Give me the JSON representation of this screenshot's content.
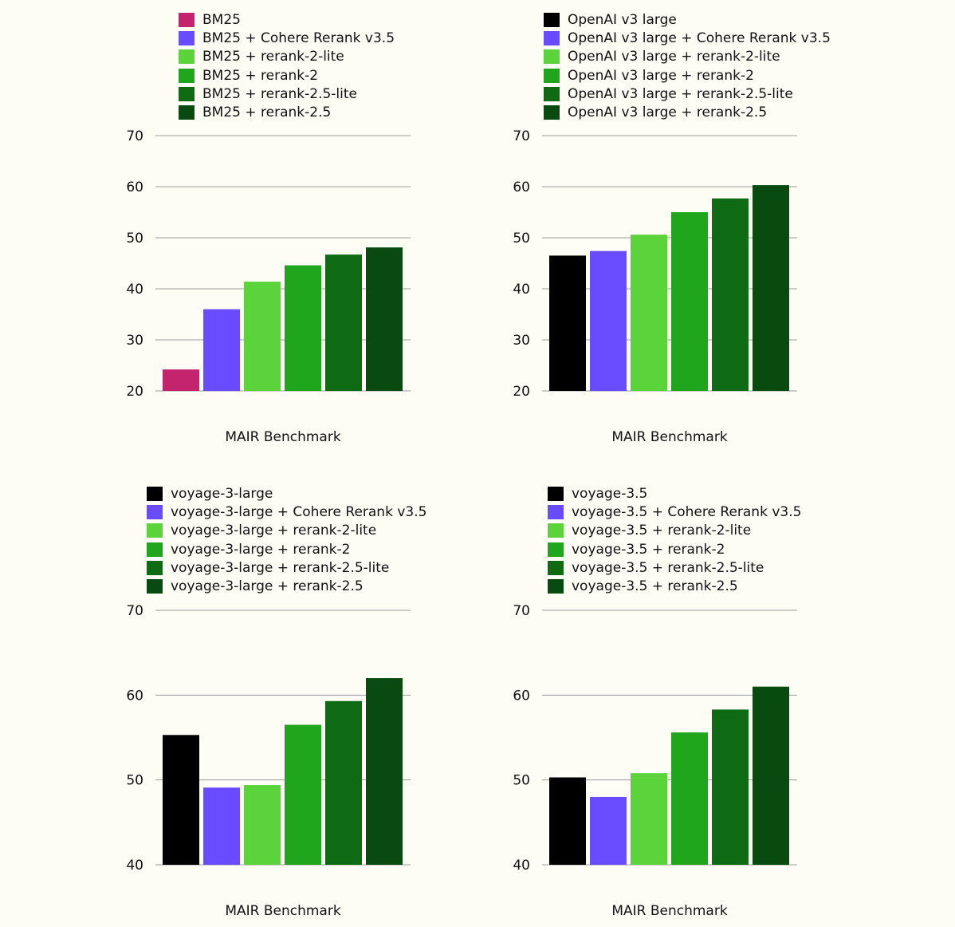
{
  "chart_data": [
    {
      "type": "bar",
      "xlabel": "MAIR Benchmark",
      "ylim": [
        20,
        70
      ],
      "yticks": [
        20,
        30,
        40,
        50,
        60,
        70
      ],
      "grid": true,
      "legend_position": "top",
      "series": [
        {
          "name": "BM25",
          "value": 24.2,
          "color": "#c4246e"
        },
        {
          "name": "BM25 + Cohere Rerank v3.5",
          "value": 36.0,
          "color": "#6a4cff"
        },
        {
          "name": "BM25 + rerank-2-lite",
          "value": 41.4,
          "color": "#5ad43a"
        },
        {
          "name": "BM25 + rerank-2",
          "value": 44.6,
          "color": "#20a61c"
        },
        {
          "name": "BM25 + rerank-2.5-lite",
          "value": 46.7,
          "color": "#0e6b14"
        },
        {
          "name": "BM25 + rerank-2.5",
          "value": 48.1,
          "color": "#084a10"
        }
      ]
    },
    {
      "type": "bar",
      "xlabel": "MAIR Benchmark",
      "ylim": [
        20,
        70
      ],
      "yticks": [
        20,
        30,
        40,
        50,
        60,
        70
      ],
      "grid": true,
      "legend_position": "top",
      "series": [
        {
          "name": "OpenAI v3 large",
          "value": 46.5,
          "color": "#000000"
        },
        {
          "name": "OpenAI v3 large + Cohere Rerank v3.5",
          "value": 47.4,
          "color": "#6a4cff"
        },
        {
          "name": "OpenAI v3 large + rerank-2-lite",
          "value": 50.6,
          "color": "#5ad43a"
        },
        {
          "name": "OpenAI v3 large + rerank-2",
          "value": 55.0,
          "color": "#20a61c"
        },
        {
          "name": "OpenAI v3 large + rerank-2.5-lite",
          "value": 57.7,
          "color": "#0e6b14"
        },
        {
          "name": "OpenAI v3 large + rerank-2.5",
          "value": 60.3,
          "color": "#084a10"
        }
      ]
    },
    {
      "type": "bar",
      "xlabel": "MAIR Benchmark",
      "ylim": [
        40,
        70
      ],
      "yticks": [
        40,
        50,
        60,
        70
      ],
      "grid": true,
      "legend_position": "top",
      "series": [
        {
          "name": "voyage-3-large",
          "value": 55.3,
          "color": "#000000"
        },
        {
          "name": "voyage-3-large + Cohere Rerank v3.5",
          "value": 49.1,
          "color": "#6a4cff"
        },
        {
          "name": "voyage-3-large + rerank-2-lite",
          "value": 49.4,
          "color": "#5ad43a"
        },
        {
          "name": "voyage-3-large + rerank-2",
          "value": 56.5,
          "color": "#20a61c"
        },
        {
          "name": "voyage-3-large + rerank-2.5-lite",
          "value": 59.3,
          "color": "#0e6b14"
        },
        {
          "name": "voyage-3-large + rerank-2.5",
          "value": 62.0,
          "color": "#084a10"
        }
      ]
    },
    {
      "type": "bar",
      "xlabel": "MAIR Benchmark",
      "ylim": [
        40,
        70
      ],
      "yticks": [
        40,
        50,
        60,
        70
      ],
      "grid": true,
      "legend_position": "top",
      "series": [
        {
          "name": "voyage-3.5",
          "value": 50.3,
          "color": "#000000"
        },
        {
          "name": "voyage-3.5 + Cohere Rerank v3.5",
          "value": 48.0,
          "color": "#6a4cff"
        },
        {
          "name": "voyage-3.5 + rerank-2-lite",
          "value": 50.8,
          "color": "#5ad43a"
        },
        {
          "name": "voyage-3.5 + rerank-2",
          "value": 55.6,
          "color": "#20a61c"
        },
        {
          "name": "voyage-3.5 + rerank-2.5-lite",
          "value": 58.3,
          "color": "#0e6b14"
        },
        {
          "name": "voyage-3.5 + rerank-2.5",
          "value": 61.0,
          "color": "#084a10"
        }
      ]
    }
  ]
}
